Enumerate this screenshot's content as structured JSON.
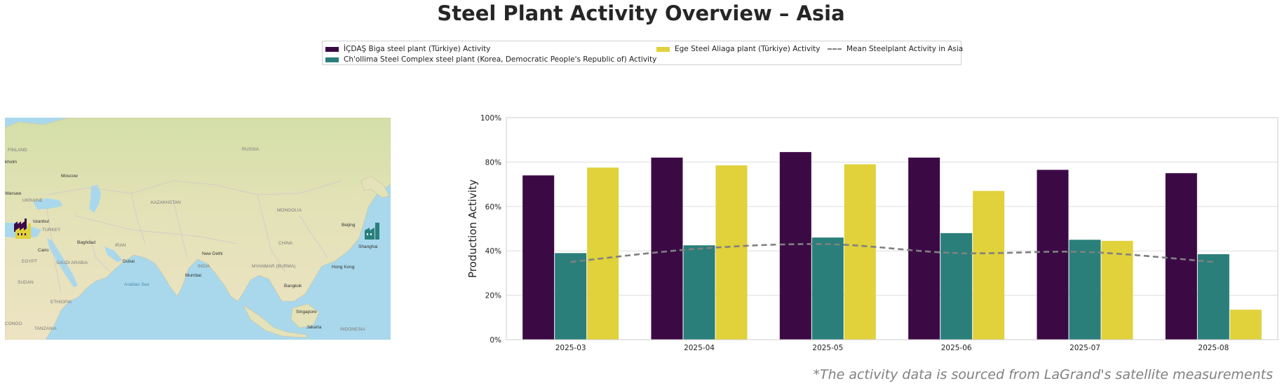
{
  "title": "Steel Plant Activity Overview – Asia",
  "footnote": "*The activity data is sourced from LaGrand's satellite measurements",
  "legend": {
    "items": [
      {
        "label": "İÇDAŞ Biga steel plant (Türkiye) Activity",
        "color": "#3b0a45",
        "kind": "bar"
      },
      {
        "label": "Ch'ollima Steel Complex steel plant (Korea, Democratic People's Republic of) Activity",
        "color": "#2a7f7a",
        "kind": "bar"
      },
      {
        "label": "Ege Steel Aliaga plant (Türkiye) Activity",
        "color": "#e1d13b",
        "kind": "bar"
      },
      {
        "label": "Mean Steelplant Activity in Asia",
        "color": "#808080",
        "kind": "dashed-line"
      }
    ]
  },
  "map": {
    "labels": [
      {
        "text": "FINLAND"
      },
      {
        "text": "RUSSIA"
      },
      {
        "text": "kholm"
      },
      {
        "text": "Moscow"
      },
      {
        "text": "Warsaw"
      },
      {
        "text": "UKRAINE"
      },
      {
        "text": "KAZAKHSTAN"
      },
      {
        "text": "MONGOLIA"
      },
      {
        "text": "Istanbul"
      },
      {
        "text": "TURKEY"
      },
      {
        "text": "Beijing"
      },
      {
        "text": "Baghdad"
      },
      {
        "text": "IRAN"
      },
      {
        "text": "Cairo"
      },
      {
        "text": "CHINA"
      },
      {
        "text": "Shanghai"
      },
      {
        "text": "EGYPT"
      },
      {
        "text": "SAUDI ARABIA"
      },
      {
        "text": "Dubai"
      },
      {
        "text": "New Delhi"
      },
      {
        "text": "INDIA"
      },
      {
        "text": "MYANMAR (BURMA)"
      },
      {
        "text": "Hong Kong"
      },
      {
        "text": "Mumbai"
      },
      {
        "text": "SUDAN"
      },
      {
        "text": "Arabian Sea"
      },
      {
        "text": "Bangkok"
      },
      {
        "text": "ETHIOPIA"
      },
      {
        "text": "Singapore"
      },
      {
        "text": "CONGO"
      },
      {
        "text": "TANZANIA"
      },
      {
        "text": "Jakarta"
      },
      {
        "text": "INDONESIA"
      }
    ],
    "markers": [
      {
        "name": "icdas-biga-marker",
        "color": "#3b0a45"
      },
      {
        "name": "ege-steel-marker",
        "color": "#e1d13b"
      },
      {
        "name": "chollima-marker",
        "color": "#2a7f7a"
      }
    ]
  },
  "chart_data": {
    "type": "bar",
    "ylabel": "Production Activity",
    "xlabel": "",
    "categories": [
      "2025-03",
      "2025-04",
      "2025-05",
      "2025-06",
      "2025-07",
      "2025-08"
    ],
    "ylim": [
      0,
      100
    ],
    "yticks": [
      0,
      20,
      40,
      60,
      80,
      100
    ],
    "ytick_labels": [
      "0%",
      "20%",
      "40%",
      "60%",
      "80%",
      "100%"
    ],
    "grid": true,
    "series": [
      {
        "name": "İÇDAŞ Biga steel plant (Türkiye) Activity",
        "color": "#3b0a45",
        "values": [
          74,
          82,
          84.5,
          82,
          76.5,
          75
        ]
      },
      {
        "name": "Ch'ollima Steel Complex steel plant (Korea, Democratic People's Republic of) Activity",
        "color": "#2a7f7a",
        "values": [
          39,
          42.5,
          46,
          48,
          45,
          38.5
        ]
      },
      {
        "name": "Ege Steel Aliaga plant (Türkiye) Activity",
        "color": "#e1d13b",
        "values": [
          77.5,
          78.5,
          79,
          67,
          44.5,
          13.5
        ]
      }
    ],
    "mean_line": {
      "name": "Mean Steelplant Activity in Asia",
      "color": "#808080",
      "values": [
        35,
        41,
        43,
        39,
        39.5,
        35
      ]
    }
  }
}
